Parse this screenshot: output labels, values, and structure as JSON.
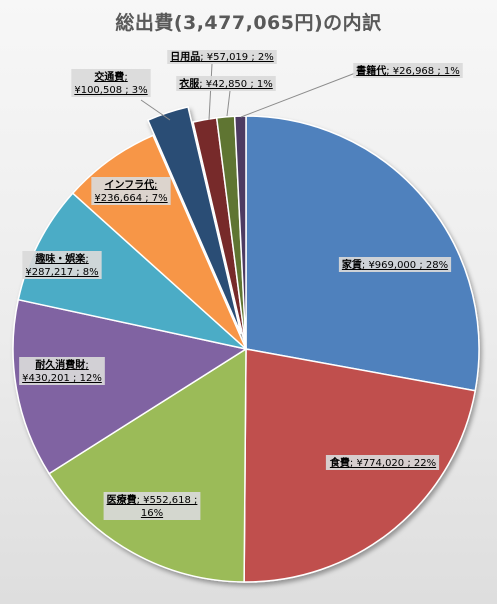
{
  "chart_data": {
    "type": "pie",
    "title": "総出費(3,477,065円)の内訳",
    "total": 3477065,
    "currency_prefix": "¥",
    "slices": [
      {
        "name": "家賃",
        "value": 969000,
        "percent": "28%",
        "color": "#4f81bd",
        "exploded": false
      },
      {
        "name": "食費",
        "value": 774020,
        "percent": "22%",
        "color": "#c0504d",
        "exploded": false
      },
      {
        "name": "医療費",
        "value": 552618,
        "percent": "16%",
        "color": "#9bbb59",
        "exploded": false
      },
      {
        "name": "耐久消費財",
        "value": 430201,
        "percent": "12%",
        "color": "#8064a2",
        "exploded": false
      },
      {
        "name": "趣味・娯楽",
        "value": 287217,
        "percent": "8%",
        "color": "#4bacc6",
        "exploded": false
      },
      {
        "name": "インフラ代",
        "value": 236664,
        "percent": "7%",
        "color": "#f79646",
        "exploded": false
      },
      {
        "name": "交通費",
        "value": 100508,
        "percent": "3%",
        "color": "#2c4d75",
        "exploded": true
      },
      {
        "name": "日用品",
        "value": 57019,
        "percent": "2%",
        "color": "#772c2a",
        "exploded": false
      },
      {
        "name": "衣服",
        "value": 42850,
        "percent": "1%",
        "color": "#5f7530",
        "exploded": false
      },
      {
        "name": "書籍代",
        "value": 26968,
        "percent": "1%",
        "color": "#4d3b62",
        "exploded": false
      }
    ]
  }
}
